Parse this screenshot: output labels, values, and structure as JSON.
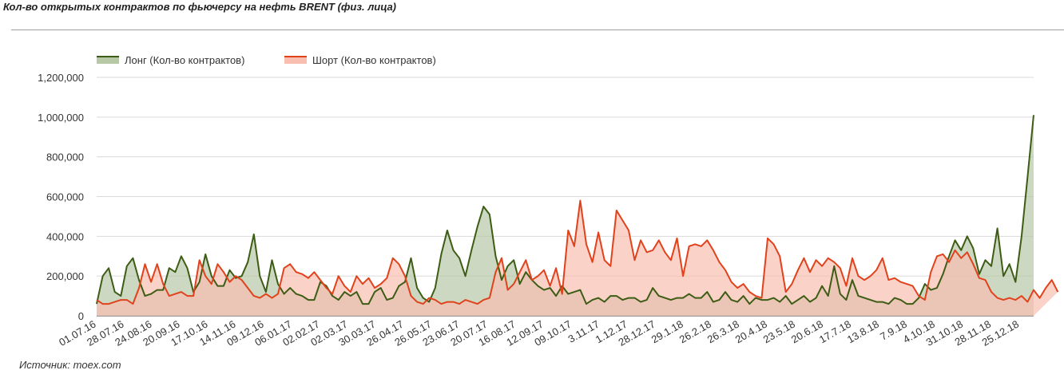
{
  "title": "Кол-во открытых контрактов по фьючерсу на нефть BRENT (физ. лица)",
  "source": "Источник: moex.com",
  "colors": {
    "long": "#3d5c14",
    "long_fill": "#b6c8a6",
    "short": "#e0421c",
    "short_fill": "#f8bfb0",
    "grid": "#d9d9d9"
  },
  "chart_data": {
    "type": "area",
    "title": "Кол-во открытых контрактов по фьючерсу на нефть BRENT (физ. лица)",
    "xlabel": "",
    "ylabel": "",
    "ylim": [
      0,
      1200000
    ],
    "yticks": [
      "0",
      "200,000",
      "400,000",
      "600,000",
      "800,000",
      "1,000,000",
      "1,200,000"
    ],
    "grid": true,
    "legend_position": "top-left",
    "x_labels": [
      "01.07.16",
      "28.07.16",
      "24.08.16",
      "20.09.16",
      "17.10.16",
      "14.11.16",
      "09.12.16",
      "06.01.17",
      "02.02.17",
      "02.03.17",
      "30.03.17",
      "26.04.17",
      "26.05.17",
      "23.06.17",
      "20.07.17",
      "16.08.17",
      "12.09.17",
      "09.10.17",
      "3.11.17",
      "1.12.17",
      "28.12.17",
      "29.1.18",
      "26.2.18",
      "26.3.18",
      "20.4.18",
      "23.5.18",
      "20.6.18",
      "17.7.18",
      "13.8.18",
      "7.9.18",
      "4.10.18",
      "31.10.18",
      "28.11.18",
      "25.12.18"
    ],
    "series": [
      {
        "name": "Лонг (Кол-во контрактов)",
        "values": [
          60000,
          200000,
          240000,
          120000,
          100000,
          250000,
          290000,
          180000,
          100000,
          110000,
          130000,
          130000,
          240000,
          220000,
          300000,
          240000,
          120000,
          170000,
          310000,
          200000,
          150000,
          150000,
          230000,
          190000,
          200000,
          270000,
          410000,
          200000,
          120000,
          280000,
          160000,
          110000,
          140000,
          110000,
          100000,
          80000,
          80000,
          170000,
          150000,
          100000,
          80000,
          120000,
          100000,
          120000,
          60000,
          60000,
          120000,
          140000,
          80000,
          90000,
          150000,
          170000,
          290000,
          140000,
          90000,
          70000,
          140000,
          310000,
          430000,
          330000,
          290000,
          200000,
          330000,
          450000,
          550000,
          510000,
          300000,
          180000,
          250000,
          280000,
          160000,
          220000,
          180000,
          150000,
          130000,
          140000,
          100000,
          150000,
          110000,
          120000,
          130000,
          60000,
          80000,
          90000,
          70000,
          100000,
          100000,
          80000,
          90000,
          90000,
          70000,
          80000,
          140000,
          100000,
          90000,
          80000,
          90000,
          90000,
          110000,
          90000,
          90000,
          120000,
          70000,
          80000,
          120000,
          80000,
          70000,
          100000,
          60000,
          90000,
          80000,
          80000,
          90000,
          70000,
          100000,
          60000,
          80000,
          100000,
          70000,
          90000,
          150000,
          100000,
          250000,
          110000,
          80000,
          180000,
          100000,
          90000,
          80000,
          70000,
          70000,
          60000,
          90000,
          80000,
          60000,
          60000,
          90000,
          160000,
          130000,
          140000,
          210000,
          300000,
          380000,
          330000,
          400000,
          340000,
          210000,
          280000,
          250000,
          440000,
          200000,
          260000,
          170000,
          400000,
          700000,
          1010000
        ]
      },
      {
        "name": "Шорт (Кол-во контрактов)",
        "values": [
          80000,
          60000,
          60000,
          70000,
          80000,
          80000,
          60000,
          140000,
          260000,
          170000,
          260000,
          160000,
          100000,
          110000,
          120000,
          100000,
          100000,
          280000,
          200000,
          160000,
          260000,
          220000,
          170000,
          200000,
          180000,
          140000,
          100000,
          90000,
          110000,
          90000,
          110000,
          240000,
          260000,
          220000,
          210000,
          190000,
          220000,
          180000,
          140000,
          110000,
          200000,
          150000,
          120000,
          200000,
          160000,
          190000,
          140000,
          160000,
          190000,
          290000,
          260000,
          200000,
          100000,
          70000,
          60000,
          90000,
          80000,
          60000,
          70000,
          70000,
          60000,
          80000,
          70000,
          60000,
          80000,
          90000,
          220000,
          290000,
          130000,
          160000,
          220000,
          280000,
          180000,
          200000,
          230000,
          150000,
          240000,
          110000,
          430000,
          350000,
          580000,
          360000,
          270000,
          420000,
          280000,
          250000,
          530000,
          480000,
          430000,
          280000,
          380000,
          320000,
          330000,
          380000,
          320000,
          280000,
          390000,
          200000,
          350000,
          360000,
          350000,
          380000,
          330000,
          270000,
          230000,
          170000,
          140000,
          160000,
          120000,
          100000,
          90000,
          390000,
          360000,
          300000,
          120000,
          160000,
          230000,
          290000,
          220000,
          280000,
          250000,
          290000,
          270000,
          240000,
          150000,
          290000,
          200000,
          180000,
          200000,
          230000,
          290000,
          180000,
          190000,
          170000,
          160000,
          150000,
          100000,
          80000,
          220000,
          300000,
          310000,
          270000,
          330000,
          290000,
          320000,
          260000,
          190000,
          180000,
          120000,
          90000,
          80000,
          90000,
          80000,
          100000,
          70000,
          130000,
          90000,
          140000,
          180000,
          120000
        ]
      }
    ]
  }
}
